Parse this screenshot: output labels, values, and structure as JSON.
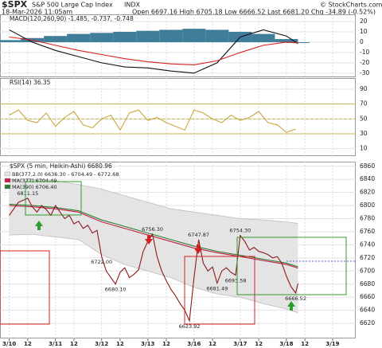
{
  "header": {
    "symbol": "$SPX",
    "name": "S&P 500 Large Cap Index",
    "exchange": "INDX",
    "date": "18-Mar-2026 11:05am",
    "stats": "Open 6697.16  High 6705.18  Low 6666.52  Last 6681.20  Chg -34.89 (-0.52%)",
    "watermark": "© StockCharts.com"
  },
  "chart_data": [
    {
      "type": "line",
      "title": "MACD(120,260,90) -1.485, -0.737, -0.748",
      "xlim": [
        -0.2,
        7.5
      ],
      "ylim": [
        -34,
        27
      ],
      "yticks": [
        20,
        10,
        0,
        -10,
        -20,
        -30
      ],
      "grid": true,
      "x": [
        0,
        0.5,
        1,
        1.5,
        2,
        2.5,
        3,
        3.5,
        4,
        4.5,
        5,
        5.5,
        6,
        6.25
      ],
      "series": [
        {
          "style": "bar",
          "color": "#2a6f8f",
          "values": [
            2,
            4,
            6,
            8,
            9,
            10,
            11,
            12,
            13,
            12,
            10,
            8,
            3,
            -0.748
          ]
        },
        {
          "style": "line",
          "color": "#111111",
          "values": [
            12,
            0,
            -8,
            -14,
            -20,
            -24,
            -25,
            -28,
            -30,
            -20,
            5,
            12,
            6,
            -1.485
          ]
        },
        {
          "style": "line",
          "color": "#d62020",
          "values": [
            5,
            2,
            -3,
            -8,
            -12,
            -16,
            -19,
            -21,
            -22,
            -18,
            -10,
            -3,
            0,
            -0.737
          ]
        }
      ]
    },
    {
      "type": "line",
      "title": "RSI(14) 36.35",
      "xlim": [
        -0.2,
        7.5
      ],
      "ylim": [
        0,
        105
      ],
      "yticks": [
        90,
        70,
        50,
        30,
        10
      ],
      "grid": true,
      "reference_lines": [
        70,
        50,
        30
      ],
      "reference_color": "#c8b450",
      "x": [
        0,
        0.2,
        0.4,
        0.6,
        0.8,
        1,
        1.2,
        1.4,
        1.6,
        1.8,
        2,
        2.2,
        2.4,
        2.6,
        2.8,
        3,
        3.2,
        3.4,
        3.6,
        3.8,
        4,
        4.2,
        4.4,
        4.6,
        4.8,
        5,
        5.2,
        5.4,
        5.6,
        5.8,
        6,
        6.2
      ],
      "series": [
        {
          "style": "line",
          "color": "#c8a640",
          "values": [
            55,
            62,
            48,
            45,
            58,
            40,
            52,
            60,
            42,
            38,
            50,
            55,
            35,
            58,
            62,
            48,
            52,
            45,
            40,
            35,
            62,
            58,
            50,
            45,
            55,
            48,
            52,
            60,
            45,
            42,
            32,
            36.35
          ]
        }
      ]
    },
    {
      "type": "line",
      "title": "$SPX (5 min, Heikin-Ashi) 6680.96",
      "xlim": [
        -0.2,
        7.5
      ],
      "ylim": [
        6597,
        6867
      ],
      "yticks": [
        6860,
        6840,
        6820,
        6800,
        6780,
        6760,
        6740,
        6720,
        6700,
        6680,
        6660,
        6640,
        6620
      ],
      "grid": true,
      "xticks": [
        {
          "value": 0,
          "label": "3/10"
        },
        {
          "value": 0.4,
          "label": "12"
        },
        {
          "value": 1,
          "label": "3/11"
        },
        {
          "value": 1.4,
          "label": "12"
        },
        {
          "value": 2,
          "label": "3/12"
        },
        {
          "value": 2.4,
          "label": "12"
        },
        {
          "value": 3,
          "label": "3/13"
        },
        {
          "value": 3.4,
          "label": "12"
        },
        {
          "value": 4,
          "label": "3/16"
        },
        {
          "value": 4.4,
          "label": "12"
        },
        {
          "value": 5,
          "label": "3/17"
        },
        {
          "value": 5.4,
          "label": "12"
        },
        {
          "value": 6,
          "label": "3/18"
        },
        {
          "value": 6.4,
          "label": "12"
        },
        {
          "value": 7,
          "label": "3/19"
        }
      ],
      "series": [
        {
          "name": "BB(377,2.0) 6636.30 - 6704.49 - 6772.68",
          "style": "band",
          "color": "#e4e4e4",
          "x": [
            0,
            0.5,
            1,
            1.5,
            2,
            2.5,
            3,
            3.5,
            4,
            4.5,
            5,
            5.5,
            6,
            6.25
          ],
          "values": [
            6840,
            6840,
            6838,
            6832,
            6825,
            6815,
            6805,
            6795,
            6790,
            6785,
            6780,
            6778,
            6775,
            6772.68
          ],
          "lower": [
            6755,
            6756,
            6752,
            6748,
            6725,
            6710,
            6700,
            6690,
            6675,
            6665,
            6660,
            6650,
            6642,
            6636.3
          ]
        },
        {
          "name": "MA(377) 6704.49",
          "style": "line",
          "color": "#c0204a",
          "x": [
            0,
            0.5,
            1,
            1.5,
            2,
            2.5,
            3,
            3.5,
            4,
            4.5,
            5,
            5.5,
            6,
            6.25
          ],
          "values": [
            6800,
            6798,
            6795,
            6790,
            6775,
            6765,
            6755,
            6745,
            6735,
            6728,
            6722,
            6716,
            6710,
            6704.49
          ]
        },
        {
          "name": "MA(390) 6706.40",
          "style": "line",
          "color": "#2f7d32",
          "x": [
            0,
            0.5,
            1,
            1.5,
            2,
            2.5,
            3,
            3.5,
            4,
            4.5,
            5,
            5.5,
            6,
            6.25
          ],
          "values": [
            6802,
            6800,
            6797,
            6792,
            6778,
            6768,
            6758,
            6748,
            6738,
            6730,
            6724,
            6718,
            6712,
            6706.4
          ]
        },
        {
          "style": "line",
          "color": "#8b1a1a",
          "x": [
            0,
            0.1,
            0.2,
            0.3,
            0.4,
            0.5,
            0.6,
            0.7,
            0.8,
            0.9,
            1,
            1.1,
            1.2,
            1.3,
            1.4,
            1.5,
            1.6,
            1.7,
            1.8,
            1.9,
            2,
            2.1,
            2.2,
            2.3,
            2.4,
            2.5,
            2.6,
            2.7,
            2.8,
            2.9,
            3,
            3.1,
            3.2,
            3.3,
            3.4,
            3.5,
            3.6,
            3.7,
            3.8,
            3.9,
            4,
            4.1,
            4.2,
            4.3,
            4.4,
            4.5,
            4.6,
            4.7,
            4.8,
            4.9,
            5,
            5.1,
            5.2,
            5.3,
            5.4,
            5.5,
            5.6,
            5.7,
            5.8,
            5.9,
            6,
            6.1,
            6.2,
            6.25
          ],
          "values": [
            6785,
            6795,
            6805,
            6808,
            6811.15,
            6798,
            6790,
            6800,
            6794,
            6785,
            6800,
            6790,
            6780,
            6785,
            6772,
            6776,
            6765,
            6770,
            6758,
            6762,
            6722.0,
            6700,
            6690,
            6680.1,
            6698,
            6705,
            6690,
            6695,
            6702,
            6730,
            6745,
            6756.3,
            6722,
            6700,
            6685,
            6672,
            6662,
            6650,
            6640,
            6623.92,
            6690,
            6747.87,
            6712,
            6700,
            6706,
            6681.49,
            6700,
            6705,
            6698,
            6693.58,
            6754.3,
            6745,
            6732,
            6736,
            6730,
            6728,
            6725,
            6720,
            6722,
            6712,
            6692,
            6676,
            6666.52,
            6680.96
          ],
          "value_labels": [
            null,
            null,
            null,
            null,
            "6811.15",
            null,
            null,
            null,
            null,
            null,
            null,
            null,
            null,
            null,
            null,
            null,
            null,
            null,
            null,
            null,
            "6722.00",
            null,
            null,
            "6680.10",
            null,
            null,
            null,
            null,
            null,
            null,
            null,
            "6756.30",
            null,
            null,
            null,
            null,
            null,
            null,
            null,
            "6623.92",
            null,
            "6747.87",
            null,
            null,
            null,
            "6681.49",
            null,
            null,
            null,
            "6693.58",
            "6754.30",
            null,
            null,
            null,
            null,
            null,
            null,
            null,
            null,
            null,
            null,
            null,
            "6666.52",
            null
          ]
        }
      ]
    }
  ]
}
